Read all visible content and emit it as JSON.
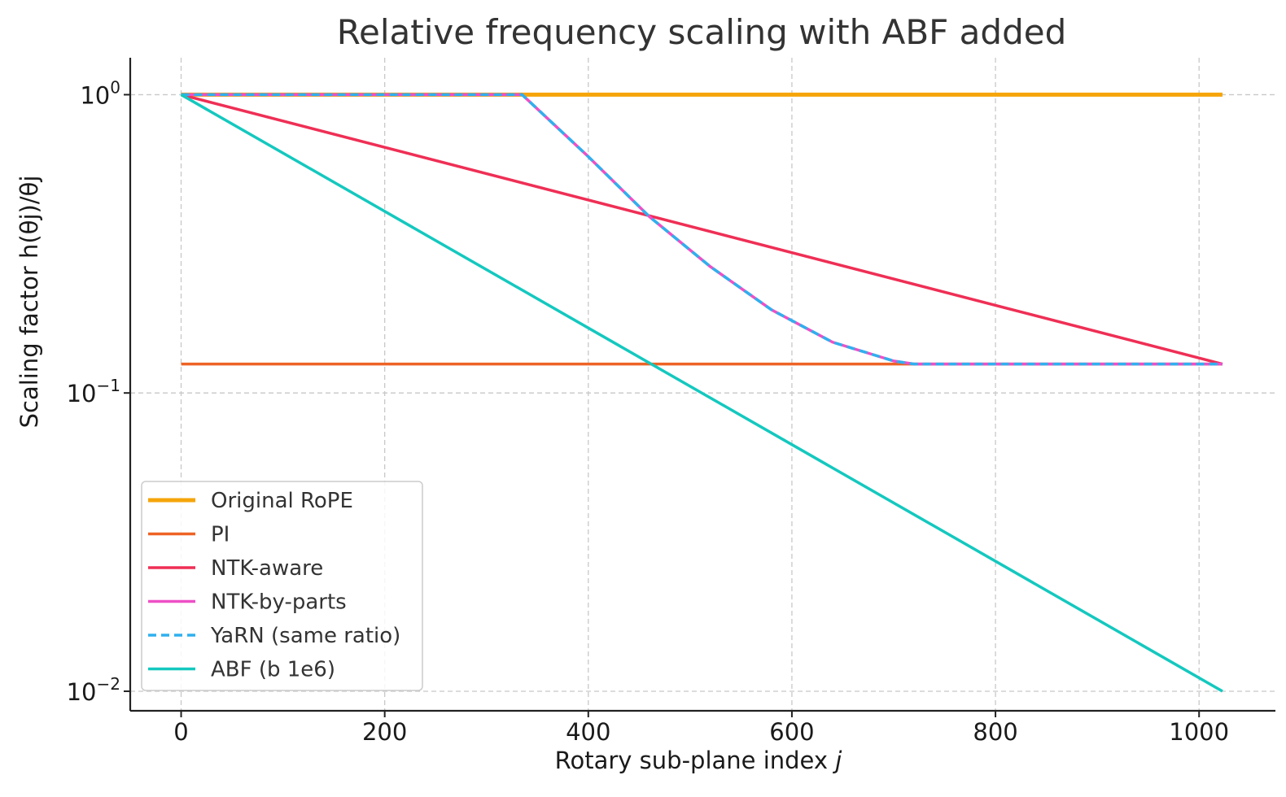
{
  "chart_data": {
    "type": "line",
    "title": "Relative frequency scaling with ABF added",
    "xlabel": "Rotary sub-plane index j",
    "ylabel": "Scaling factor h(θj)/θj",
    "xlim": [
      -50,
      1075
    ],
    "ylim": [
      0.0086,
      1.33
    ],
    "yscale": "log",
    "grid": true,
    "legend_position": "lower-left",
    "x_ticks": [
      0,
      200,
      400,
      600,
      800,
      1000
    ],
    "x_tick_labels": [
      "0",
      "200",
      "400",
      "600",
      "800",
      "1000"
    ],
    "y_ticks": [
      1,
      0.1,
      0.01
    ],
    "y_tick_labels": [
      {
        "base": "10",
        "exp": "0"
      },
      {
        "base": "10",
        "exp": "−1"
      },
      {
        "base": "10",
        "exp": "−2"
      }
    ],
    "series": [
      {
        "name": "Original RoPE",
        "color": "#f5a50a",
        "dash": "solid",
        "width": 5,
        "x": [
          0,
          1023
        ],
        "y": [
          1,
          1
        ]
      },
      {
        "name": "PI",
        "color": "#ee6325",
        "dash": "solid",
        "width": 3.5,
        "x": [
          0,
          1023
        ],
        "y": [
          0.125,
          0.125
        ]
      },
      {
        "name": "NTK-aware",
        "color": "#ef2f55",
        "dash": "solid",
        "width": 3.5,
        "x": [
          0,
          1023
        ],
        "y": [
          1,
          0.125
        ]
      },
      {
        "name": "NTK-by-parts",
        "color": "#ee4fc6",
        "dash": "solid",
        "width": 3.5,
        "x": [
          0,
          335,
          400,
          460,
          520,
          580,
          640,
          700,
          720,
          1023
        ],
        "y": [
          1,
          1,
          0.62,
          0.39,
          0.265,
          0.19,
          0.148,
          0.128,
          0.125,
          0.125
        ]
      },
      {
        "name": "YaRN (same ratio)",
        "color": "#2fb0ee",
        "dash": "dashed",
        "width": 3.5,
        "x": [
          0,
          335,
          400,
          460,
          520,
          580,
          640,
          700,
          720,
          1023
        ],
        "y": [
          1,
          1,
          0.62,
          0.39,
          0.265,
          0.19,
          0.148,
          0.128,
          0.125,
          0.125
        ]
      },
      {
        "name": "ABF (b 1e6)",
        "color": "#14c8bf",
        "dash": "solid",
        "width": 3.5,
        "x": [
          0,
          1023
        ],
        "y": [
          1,
          0.01
        ]
      }
    ]
  }
}
